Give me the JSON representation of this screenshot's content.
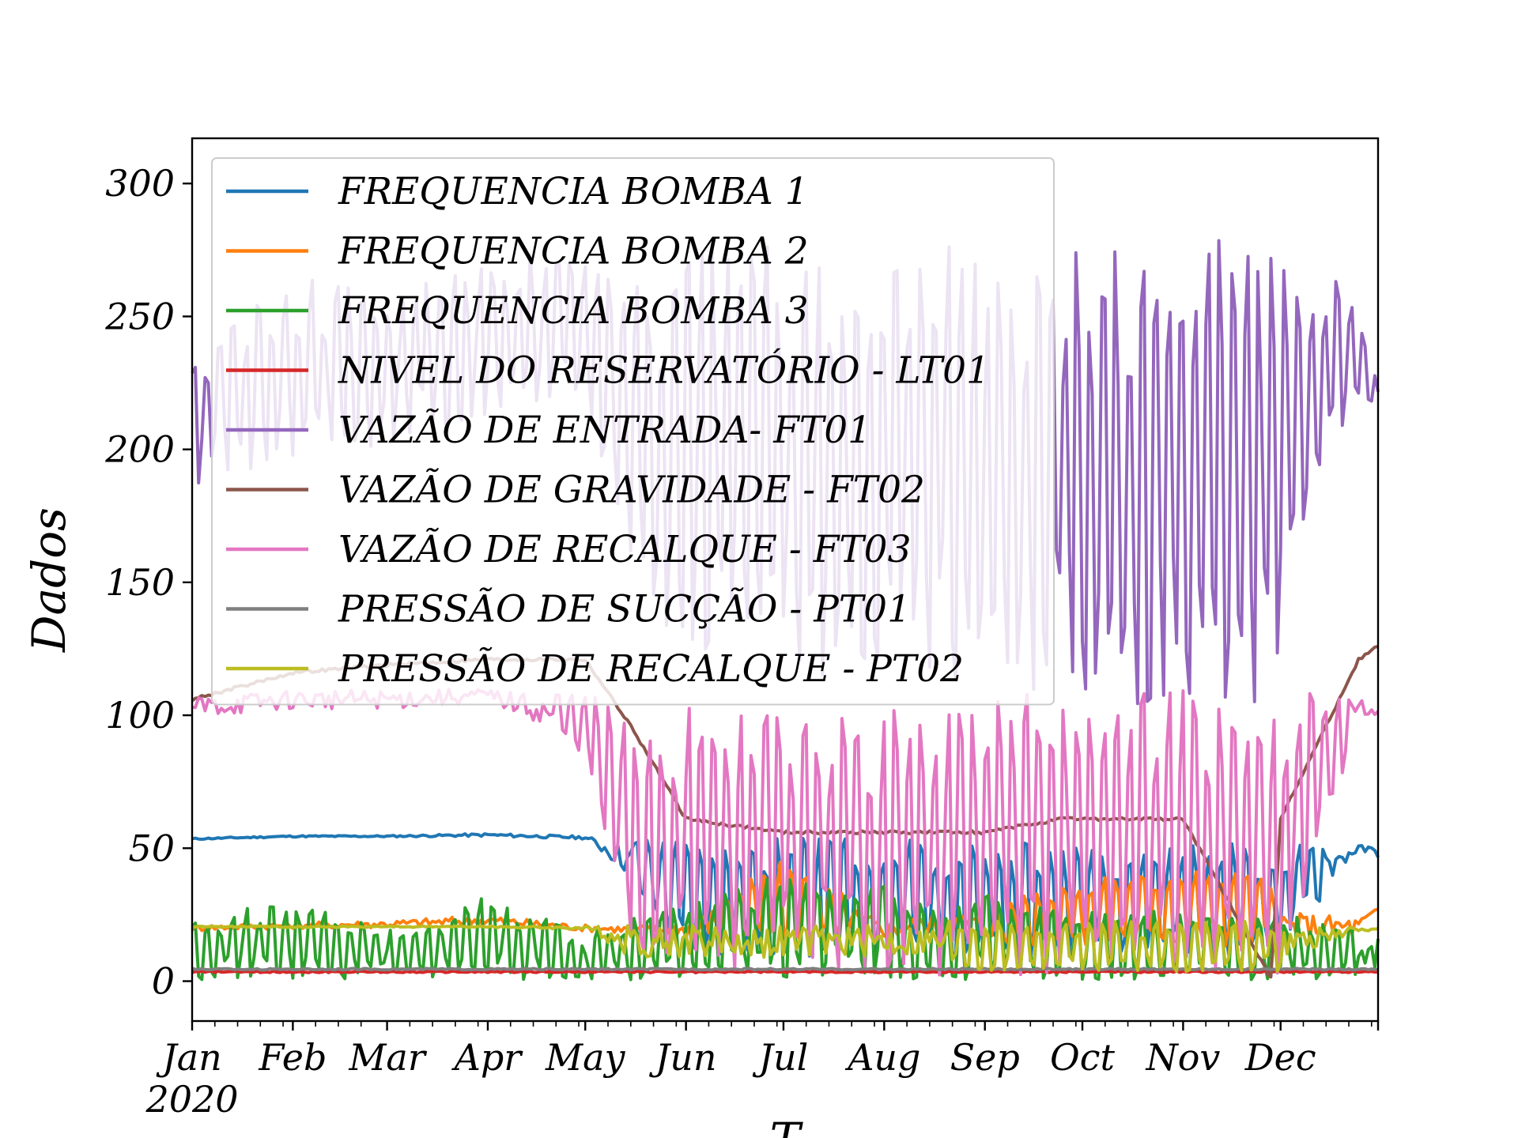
{
  "chart_data": {
    "type": "line",
    "xlabel": "T",
    "ylabel": "Dados",
    "ylim": [
      -15,
      317
    ],
    "xlim": [
      "2020-01-01",
      "2020-12-31"
    ],
    "year_label": "2020",
    "x_tick_labels": [
      "Jan",
      "Feb",
      "Mar",
      "Apr",
      "May",
      "Jun",
      "Jul",
      "Aug",
      "Sep",
      "Oct",
      "Nov",
      "Dec"
    ],
    "y_ticks": [
      0,
      50,
      100,
      150,
      200,
      250,
      300
    ],
    "legend_position": "upper-left",
    "grid": false,
    "x": [
      "2020-01-01",
      "2020-02-01",
      "2020-03-01",
      "2020-04-01",
      "2020-05-01",
      "2020-05-15",
      "2020-06-01",
      "2020-07-01",
      "2020-08-01",
      "2020-08-20",
      "2020-09-01",
      "2020-09-25",
      "2020-10-01",
      "2020-11-01",
      "2020-11-28",
      "2020-12-01",
      "2020-12-25",
      "2020-12-31"
    ],
    "series": [
      {
        "name": "FREQUENCIA BOMBA 1",
        "color": "#1f77b4",
        "min": [
          53,
          54,
          54,
          54,
          53,
          35,
          8,
          8,
          8,
          8,
          3,
          8,
          10,
          10,
          8,
          10,
          48,
          45
        ],
        "max": [
          54,
          55,
          55,
          56,
          55,
          55,
          57,
          57,
          57,
          57,
          55,
          55,
          55,
          55,
          55,
          56,
          52,
          52
        ]
      },
      {
        "name": "FREQUENCIA BOMBA 2",
        "color": "#ff7f0e",
        "min": [
          18,
          19,
          19,
          20,
          18,
          17,
          14,
          14,
          14,
          14,
          12,
          13,
          13,
          13,
          12,
          12,
          14,
          26
        ],
        "max": [
          22,
          23,
          24,
          26,
          22,
          22,
          25,
          48,
          25,
          30,
          30,
          40,
          40,
          45,
          42,
          30,
          27,
          28
        ]
      },
      {
        "name": "FREQUENCIA BOMBA 3",
        "color": "#2ca02c",
        "min": [
          0,
          0,
          0,
          0,
          0,
          0,
          0,
          0,
          0,
          0,
          0,
          0,
          0,
          0,
          0,
          0,
          0,
          0
        ],
        "max": [
          25,
          33,
          20,
          34,
          20,
          25,
          30,
          43,
          40,
          28,
          35,
          28,
          28,
          28,
          25,
          28,
          20,
          20
        ]
      },
      {
        "name": "NIVEL DO RESERVATÓRIO - LT01",
        "color": "#d62728",
        "min": [
          3,
          3,
          3,
          3,
          3,
          3,
          3,
          3,
          3,
          3,
          3,
          3,
          3,
          3,
          3,
          3,
          3,
          3
        ],
        "max": [
          4,
          4,
          4,
          4,
          4,
          4,
          4,
          4,
          4,
          4,
          4,
          4,
          4,
          4,
          4,
          4,
          4,
          4
        ]
      },
      {
        "name": "VAZÃO DE ENTRADA- FT01",
        "color": "#9467bd",
        "min": [
          185,
          195,
          200,
          210,
          215,
          150,
          120,
          110,
          110,
          110,
          105,
          100,
          100,
          100,
          100,
          130,
          220,
          208
        ],
        "max": [
          240,
          270,
          262,
          275,
          280,
          280,
          290,
          290,
          290,
          290,
          280,
          290,
          285,
          290,
          292,
          292,
          260,
          226
        ]
      },
      {
        "name": "VAZÃO DE GRAVIDADE - FT02",
        "color": "#8c564b",
        "min": [
          105,
          115,
          118,
          120,
          120,
          95,
          60,
          55,
          55,
          55,
          55,
          60,
          60,
          60,
          0,
          60,
          120,
          125
        ]
      },
      {
        "name": "VAZÃO DE RECALQUE - FT03",
        "color": "#e377c2",
        "min": [
          96,
          100,
          100,
          103,
          85,
          0,
          0,
          0,
          0,
          0,
          0,
          0,
          0,
          0,
          0,
          0,
          95,
          100
        ],
        "max": [
          110,
          112,
          112,
          112,
          110,
          110,
          110,
          110,
          110,
          110,
          115,
          118,
          118,
          118,
          110,
          120,
          110,
          102
        ]
      },
      {
        "name": "PRESSÃO DE SUCÇÃO - PT01",
        "color": "#7f7f7f",
        "min": [
          4,
          4,
          4,
          4,
          4,
          4,
          4,
          4,
          4,
          4,
          4,
          4,
          4,
          4,
          4,
          4,
          4,
          4
        ],
        "max": [
          5,
          5,
          5,
          5,
          5,
          5,
          5,
          5,
          5,
          5,
          5,
          5,
          5,
          5,
          5,
          5,
          5,
          5
        ]
      },
      {
        "name": "PRESSÃO DE RECALQUE - PT02",
        "color": "#bcbd22",
        "min": [
          20,
          20,
          20,
          20,
          19,
          5,
          5,
          5,
          5,
          5,
          3,
          3,
          3,
          3,
          3,
          3,
          18,
          19
        ],
        "max": [
          21,
          21,
          21,
          21,
          21,
          25,
          25,
          25,
          25,
          25,
          24,
          24,
          24,
          24,
          24,
          24,
          21,
          20
        ]
      }
    ]
  }
}
